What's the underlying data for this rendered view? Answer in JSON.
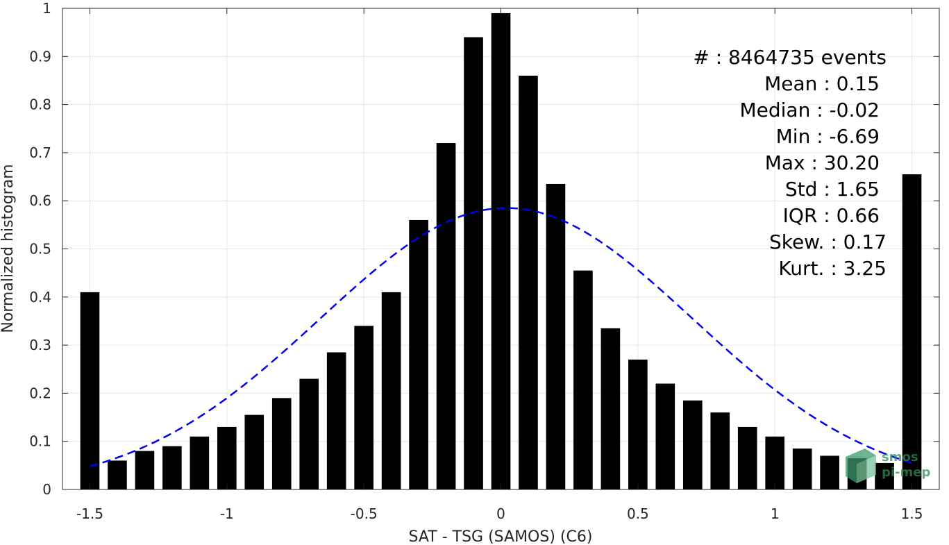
{
  "chart_data": {
    "type": "bar",
    "xlabel": "SAT - TSG (SAMOS) (C6)",
    "ylabel": "Normalized histogram",
    "xlim": [
      -1.6,
      1.6
    ],
    "ylim": [
      0,
      1
    ],
    "x_ticks": [
      "-1.5",
      "-1",
      "-0.5",
      "0",
      "0.5",
      "1",
      "1.5"
    ],
    "y_ticks": [
      "0",
      "0.1",
      "0.2",
      "0.3",
      "0.4",
      "0.5",
      "0.6",
      "0.7",
      "0.8",
      "0.9",
      "1"
    ],
    "grid": true,
    "bar_color": "#000000",
    "x": [
      -1.5,
      -1.4,
      -1.3,
      -1.2,
      -1.1,
      -1.0,
      -0.9,
      -0.8,
      -0.7,
      -0.6,
      -0.5,
      -0.4,
      -0.3,
      -0.2,
      -0.1,
      0.0,
      0.1,
      0.2,
      0.3,
      0.4,
      0.5,
      0.6,
      0.7,
      0.8,
      0.9,
      1.0,
      1.1,
      1.2,
      1.3,
      1.4,
      1.5
    ],
    "values": [
      0.41,
      0.06,
      0.08,
      0.09,
      0.11,
      0.13,
      0.155,
      0.19,
      0.23,
      0.285,
      0.34,
      0.41,
      0.56,
      0.72,
      0.94,
      0.99,
      0.86,
      0.635,
      0.455,
      0.335,
      0.27,
      0.22,
      0.185,
      0.16,
      0.13,
      0.11,
      0.085,
      0.07,
      0.065,
      0.055,
      0.655
    ],
    "fit_curve": {
      "style": "dashed",
      "color": "#0000ee",
      "mean": 0.02,
      "sigma": 0.68,
      "peak": 0.585,
      "x_range": [
        -1.5,
        1.5
      ]
    },
    "annotations": [
      "#  : 8464735 events",
      "Mean : 0.15",
      "Median : -0.02",
      "Min : -6.69",
      "Max : 30.20",
      "Std : 1.65",
      "IQR : 0.66",
      "Skew. : 0.17",
      "Kurt. : 3.25"
    ]
  },
  "watermark": {
    "line1": "smos",
    "line2": "pi-mep",
    "color": "#2e8b57"
  }
}
